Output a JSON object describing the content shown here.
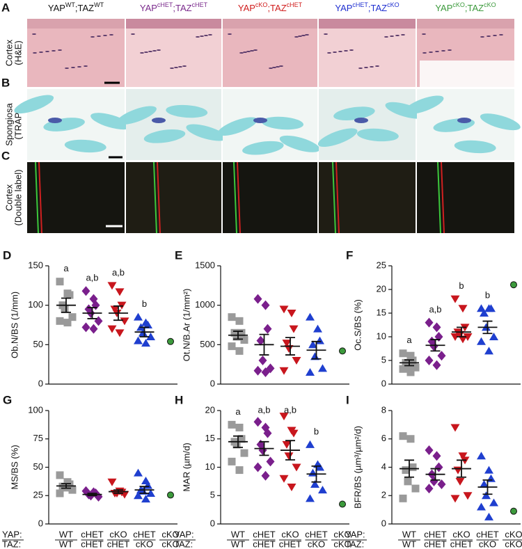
{
  "figure": {
    "panels": [
      {
        "letter": "A",
        "label": [
          "Cortex",
          "(H&E)"
        ]
      },
      {
        "letter": "B",
        "label": [
          "Spongiosa",
          "(TRAP)"
        ]
      },
      {
        "letter": "C",
        "label": [
          "Cortex",
          "(Double label)"
        ]
      }
    ],
    "columns": [
      {
        "gene1": "YAP",
        "sup1": "WT",
        "gene2": ";TAZ",
        "sup2": "WT",
        "color": "#111111"
      },
      {
        "gene1": "YAP",
        "sup1": "cHET",
        "gene2": ";TAZ",
        "sup2": "cHET",
        "color": "#7a2a8c"
      },
      {
        "gene1": "YAP",
        "sup1": "cKO",
        "gene2": ";TAZ",
        "sup2": "cHET",
        "color": "#d01c1c"
      },
      {
        "gene1": "YAP",
        "sup1": "cHET",
        "gene2": ";TAZ",
        "sup2": "cKO",
        "color": "#1f2fd0"
      },
      {
        "gene1": "YAP",
        "sup1": "cKO",
        "gene2": ";TAZ",
        "sup2": "cKO",
        "color": "#3c9a3c"
      }
    ]
  },
  "groups": {
    "yap_label": "YAP:",
    "taz_label": "TAZ:",
    "items": [
      {
        "yap": "WT",
        "taz": "WT",
        "label_color": "#111111",
        "marker": "square",
        "color": "#9a9a9a"
      },
      {
        "yap": "cHET",
        "taz": "cHET",
        "label_color": "#7a2a8c",
        "marker": "diamond",
        "color": "#7a1f8c"
      },
      {
        "yap": "cKO",
        "taz": "cHET",
        "label_color": "#d01c1c",
        "marker": "tri-down",
        "color": "#c8161d"
      },
      {
        "yap": "cHET",
        "taz": "cKO",
        "label_color": "#1f2fd0",
        "marker": "tri-up",
        "color": "#1f3fcf"
      },
      {
        "yap": "cKO",
        "taz": "cKO",
        "label_color": "#3c9a3c",
        "marker": "circle",
        "color": "#3c9a3c"
      }
    ]
  },
  "chart_data": [
    {
      "type": "dot",
      "panel": "D",
      "ylabel": "Ob.N/BS (1/mm)",
      "ylim": [
        0,
        150
      ],
      "yticks": [
        0,
        50,
        100,
        150
      ],
      "letters": [
        "a",
        "a,b",
        "a,b",
        "b",
        null
      ],
      "series": [
        {
          "values": [
            130,
            115,
            113,
            100,
            95,
            85,
            80,
            78
          ],
          "mean": 100,
          "sem": 9
        },
        {
          "values": [
            118,
            108,
            100,
            95,
            90,
            80,
            72,
            70
          ],
          "mean": 90,
          "sem": 7
        },
        {
          "values": [
            125,
            117,
            100,
            95,
            90,
            80,
            70,
            65
          ],
          "mean": 90,
          "sem": 9
        },
        {
          "values": [
            85,
            78,
            75,
            72,
            65,
            60,
            55,
            52
          ],
          "mean": 66,
          "sem": 6
        },
        {
          "values": [
            54
          ]
        }
      ]
    },
    {
      "type": "dot",
      "panel": "E",
      "ylabel": "Ot.N/B.Ar (1/mm²)",
      "ylim": [
        0,
        1500
      ],
      "yticks": [
        0,
        500,
        1000,
        1500
      ],
      "letters": [
        null,
        null,
        null,
        null,
        null
      ],
      "series": [
        {
          "values": [
            850,
            800,
            650,
            650,
            600,
            560,
            480,
            420
          ],
          "mean": 620,
          "sem": 50
        },
        {
          "values": [
            1080,
            1000,
            700,
            550,
            300,
            200,
            170,
            150
          ],
          "mean": 500,
          "sem": 130
        },
        {
          "values": [
            950,
            900,
            700,
            520,
            450,
            300,
            170
          ],
          "mean": 480,
          "sem": 110
        },
        {
          "values": [
            850,
            700,
            550,
            500,
            350,
            200,
            150
          ],
          "mean": 430,
          "sem": 110
        },
        {
          "values": [
            420
          ]
        }
      ]
    },
    {
      "type": "dot",
      "panel": "F",
      "ylabel": "Oc.S/BS (%)",
      "ylim": [
        0,
        25
      ],
      "yticks": [
        0,
        5,
        10,
        15,
        20,
        25
      ],
      "letters": [
        "a",
        "a,b",
        "b",
        "b",
        null
      ],
      "series": [
        {
          "values": [
            6.5,
            6,
            5,
            4.5,
            4,
            3.5,
            3.2,
            2.5
          ],
          "mean": 4.5,
          "sem": 0.6
        },
        {
          "values": [
            13,
            12,
            10,
            9,
            8,
            6,
            5,
            4
          ],
          "mean": 8.2,
          "sem": 1.2
        },
        {
          "values": [
            18,
            16,
            12,
            11,
            10.5,
            10,
            10,
            9.5
          ],
          "mean": 11,
          "sem": 1
        },
        {
          "values": [
            16,
            16,
            16,
            15,
            12,
            10,
            9,
            7
          ],
          "mean": 12,
          "sem": 1.3
        },
        {
          "values": [
            21
          ]
        }
      ]
    },
    {
      "type": "dot",
      "panel": "G",
      "ylabel": "MS/BS (%)",
      "ylim": [
        0,
        100
      ],
      "yticks": [
        0,
        25,
        50,
        75,
        100
      ],
      "letters": [
        null,
        null,
        null,
        null,
        null
      ],
      "series": [
        {
          "values": [
            43,
            37,
            35,
            33,
            32,
            30,
            27
          ],
          "mean": 33.5,
          "sem": 2
        },
        {
          "values": [
            29,
            28,
            27,
            26,
            25,
            24
          ],
          "mean": 26,
          "sem": 1
        },
        {
          "values": [
            37,
            29,
            28,
            27,
            27,
            26
          ],
          "mean": 28.5,
          "sem": 1.5
        },
        {
          "values": [
            45,
            38,
            34,
            30,
            29,
            27,
            25,
            22
          ],
          "mean": 30,
          "sem": 3
        },
        {
          "values": [
            25.5
          ]
        }
      ]
    },
    {
      "type": "dot",
      "panel": "H",
      "ylabel": "MAR (µm/d)",
      "ylim": [
        0,
        20
      ],
      "yticks": [
        0,
        5,
        10,
        15,
        20
      ],
      "letters": [
        "a",
        "a,b",
        "a,b",
        "b",
        null
      ],
      "series": [
        {
          "values": [
            17.5,
            17,
            15,
            14.5,
            14,
            12.5,
            11,
            9.5
          ],
          "mean": 14.5,
          "sem": 1
        },
        {
          "values": [
            18,
            17,
            16,
            14,
            13,
            11,
            10,
            8.5
          ],
          "mean": 13.3,
          "sem": 1.2
        },
        {
          "values": [
            19,
            16.5,
            16,
            14,
            12,
            10,
            8,
            6.5
          ],
          "mean": 13,
          "sem": 1.7
        },
        {
          "values": [
            14,
            10.5,
            10,
            9,
            7,
            6,
            4.5
          ],
          "mean": 8.8,
          "sem": 1.4
        },
        {
          "values": [
            3.5
          ]
        }
      ]
    },
    {
      "type": "dot",
      "panel": "I",
      "ylabel": "BFR/BS (µm³/µm²/d)",
      "ylim": [
        0,
        8
      ],
      "yticks": [
        0,
        2,
        4,
        6,
        8
      ],
      "letters": [
        null,
        null,
        null,
        null,
        null
      ],
      "series": [
        {
          "values": [
            6.2,
            6,
            4,
            3.8,
            3,
            2.5,
            1.8
          ],
          "mean": 3.9,
          "sem": 0.6
        },
        {
          "values": [
            5.2,
            4.8,
            4,
            3.5,
            3,
            2.8,
            2.5
          ],
          "mean": 3.5,
          "sem": 0.4
        },
        {
          "values": [
            6.8,
            4.8,
            4.5,
            3.8,
            3,
            2,
            1.8
          ],
          "mean": 3.9,
          "sem": 0.6
        },
        {
          "values": [
            4.8,
            3.8,
            3.2,
            2.8,
            2,
            1.5,
            1.2,
            0.5
          ],
          "mean": 2.6,
          "sem": 0.5
        },
        {
          "values": [
            0.9
          ]
        }
      ]
    }
  ]
}
